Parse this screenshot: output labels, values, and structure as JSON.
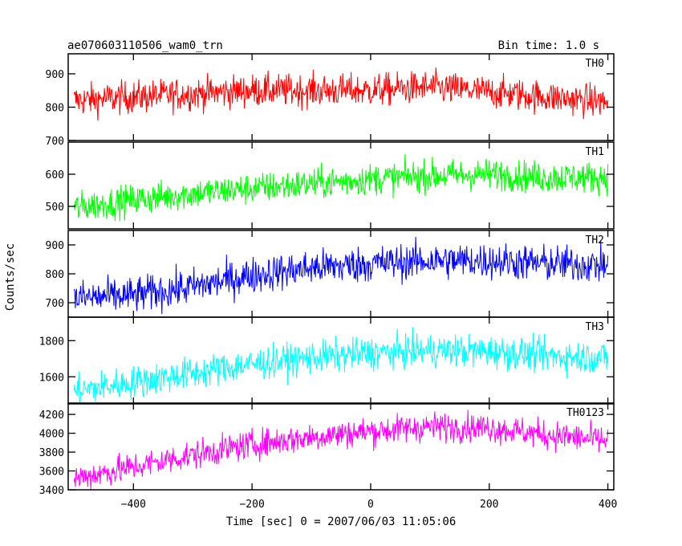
{
  "header": {
    "title": "ae070603110506_wam0_trn",
    "bin_time": "Bin time: 1.0 s"
  },
  "chart_data": {
    "type": "line",
    "title": "ae070603110506_wam0_trn",
    "subtitle": "Bin time: 1.0 s",
    "xlabel": "Time [sec] 0 = 2007/06/03 11:05:06",
    "ylabel": "Counts/sec",
    "xlim": [
      -510,
      410
    ],
    "x_ticks": [
      -400,
      -200,
      0,
      200,
      400
    ],
    "x_tick_labels": [
      "−400",
      "−200",
      "0",
      "200",
      "400"
    ],
    "x_range_data": [
      -500,
      400
    ],
    "panels": [
      {
        "name": "TH0",
        "color": "#ff0000",
        "ylim": [
          700,
          960
        ],
        "y_ticks": [
          700,
          800,
          900
        ],
        "trend": [
          [
            -500,
            820
          ],
          [
            -300,
            840
          ],
          [
            -200,
            850
          ],
          [
            0,
            850
          ],
          [
            100,
            860
          ],
          [
            200,
            845
          ],
          [
            300,
            830
          ],
          [
            400,
            815
          ]
        ],
        "noise": 35
      },
      {
        "name": "TH1",
        "color": "#00ff00",
        "ylim": [
          430,
          700
        ],
        "y_ticks": [
          500,
          600
        ],
        "trend": [
          [
            -500,
            495
          ],
          [
            -400,
            520
          ],
          [
            -300,
            540
          ],
          [
            -200,
            555
          ],
          [
            -100,
            570
          ],
          [
            0,
            585
          ],
          [
            100,
            595
          ],
          [
            200,
            600
          ],
          [
            300,
            590
          ],
          [
            400,
            590
          ]
        ],
        "noise": 35
      },
      {
        "name": "TH2",
        "color": "#0000ff",
        "ylim": [
          650,
          950
        ],
        "y_ticks": [
          700,
          800,
          900
        ],
        "trend": [
          [
            -500,
            715
          ],
          [
            -400,
            725
          ],
          [
            -300,
            755
          ],
          [
            -200,
            795
          ],
          [
            -100,
            820
          ],
          [
            0,
            835
          ],
          [
            100,
            845
          ],
          [
            200,
            845
          ],
          [
            300,
            835
          ],
          [
            400,
            830
          ]
        ],
        "noise": 45
      },
      {
        "name": "TH3",
        "color": "#00ffff",
        "ylim": [
          1450,
          1930
        ],
        "y_ticks": [
          1600,
          1800
        ],
        "trend": [
          [
            -500,
            1520
          ],
          [
            -400,
            1570
          ],
          [
            -300,
            1620
          ],
          [
            -200,
            1670
          ],
          [
            -100,
            1705
          ],
          [
            0,
            1730
          ],
          [
            100,
            1745
          ],
          [
            200,
            1740
          ],
          [
            300,
            1715
          ],
          [
            400,
            1705
          ]
        ],
        "noise": 65
      },
      {
        "name": "TH0123",
        "color": "#ff00ff",
        "ylim": [
          3400,
          4320
        ],
        "y_ticks": [
          3400,
          3600,
          3800,
          4000,
          4200
        ],
        "trend": [
          [
            -500,
            3520
          ],
          [
            -400,
            3640
          ],
          [
            -300,
            3770
          ],
          [
            -200,
            3880
          ],
          [
            -100,
            3960
          ],
          [
            0,
            4020
          ],
          [
            100,
            4070
          ],
          [
            200,
            4060
          ],
          [
            300,
            3980
          ],
          [
            400,
            3920
          ]
        ],
        "noise": 110
      }
    ]
  }
}
